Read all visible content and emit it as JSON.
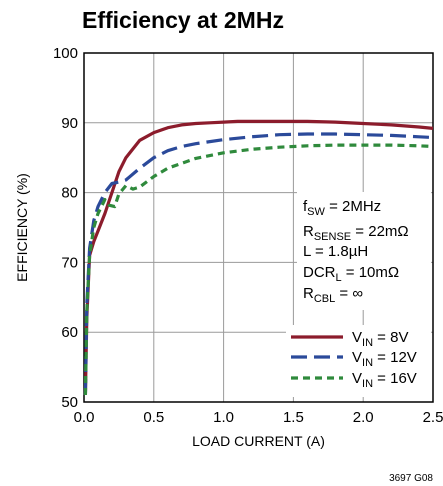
{
  "chart_data": {
    "type": "line",
    "title": "Efficiency at 2MHz",
    "xlabel": "LOAD CURRENT (A)",
    "ylabel": "EFFICIENCY (%)",
    "xlim": [
      0,
      2.5
    ],
    "ylim": [
      50,
      100
    ],
    "xticks": [
      "0.0",
      "0.5",
      "1.0",
      "1.5",
      "2.0",
      "2.5"
    ],
    "yticks": [
      "50",
      "60",
      "70",
      "80",
      "90",
      "100"
    ],
    "grid": true,
    "legend_position": "bottom-right",
    "figure_note": "3697 G08",
    "annotation": {
      "lines": [
        {
          "main": "f",
          "sub": "SW",
          "rest": " = 2MHz"
        },
        {
          "main": "R",
          "sub": "SENSE",
          "rest": " = 22mΩ"
        },
        {
          "main": "L = 1.8µH",
          "sub": "",
          "rest": ""
        },
        {
          "main": "DCR",
          "sub": "L",
          "rest": " = 10mΩ"
        },
        {
          "main": "R",
          "sub": "CBL",
          "rest": " = ∞"
        }
      ]
    },
    "series": [
      {
        "label_main": "V",
        "label_sub": "IN",
        "label_rest": " = 8V",
        "color": "#8c1c2c",
        "style": "solid",
        "x": [
          0.01,
          0.02,
          0.04,
          0.07,
          0.1,
          0.15,
          0.2,
          0.25,
          0.3,
          0.4,
          0.5,
          0.6,
          0.7,
          0.8,
          0.9,
          1.0,
          1.1,
          1.2,
          1.4,
          1.6,
          1.8,
          2.0,
          2.2,
          2.4,
          2.5
        ],
        "y": [
          51,
          62,
          71,
          73,
          74.5,
          77,
          80,
          83,
          85,
          87.5,
          88.6,
          89.3,
          89.7,
          89.9,
          90.0,
          90.1,
          90.2,
          90.2,
          90.2,
          90.2,
          90.1,
          89.9,
          89.7,
          89.4,
          89.2
        ]
      },
      {
        "label_main": "V",
        "label_sub": "IN",
        "label_rest": " = 12V",
        "color": "#2b4a9a",
        "style": "long-dash",
        "x": [
          0.01,
          0.02,
          0.04,
          0.07,
          0.1,
          0.15,
          0.2,
          0.25,
          0.3,
          0.4,
          0.5,
          0.6,
          0.7,
          0.8,
          1.0,
          1.2,
          1.4,
          1.6,
          1.8,
          2.0,
          2.2,
          2.4,
          2.5
        ],
        "y": [
          51,
          64,
          72,
          76,
          78,
          80,
          81.3,
          81.5,
          81.8,
          83.5,
          85,
          86,
          86.6,
          87,
          87.6,
          88,
          88.3,
          88.4,
          88.4,
          88.3,
          88.2,
          88,
          87.9
        ]
      },
      {
        "label_main": "V",
        "label_sub": "IN",
        "label_rest": " = 16V",
        "color": "#2f8a3c",
        "style": "short-dash",
        "x": [
          0.01,
          0.02,
          0.04,
          0.07,
          0.1,
          0.15,
          0.18,
          0.22,
          0.25,
          0.3,
          0.35,
          0.4,
          0.5,
          0.6,
          0.8,
          1.0,
          1.2,
          1.4,
          1.6,
          1.8,
          2.0,
          2.2,
          2.4,
          2.5
        ],
        "y": [
          51,
          63,
          71,
          75,
          77,
          79,
          78.2,
          78,
          79.8,
          81,
          80.5,
          80.8,
          82.3,
          83.5,
          84.9,
          85.7,
          86.2,
          86.5,
          86.7,
          86.8,
          86.8,
          86.8,
          86.7,
          86.6
        ]
      }
    ]
  }
}
